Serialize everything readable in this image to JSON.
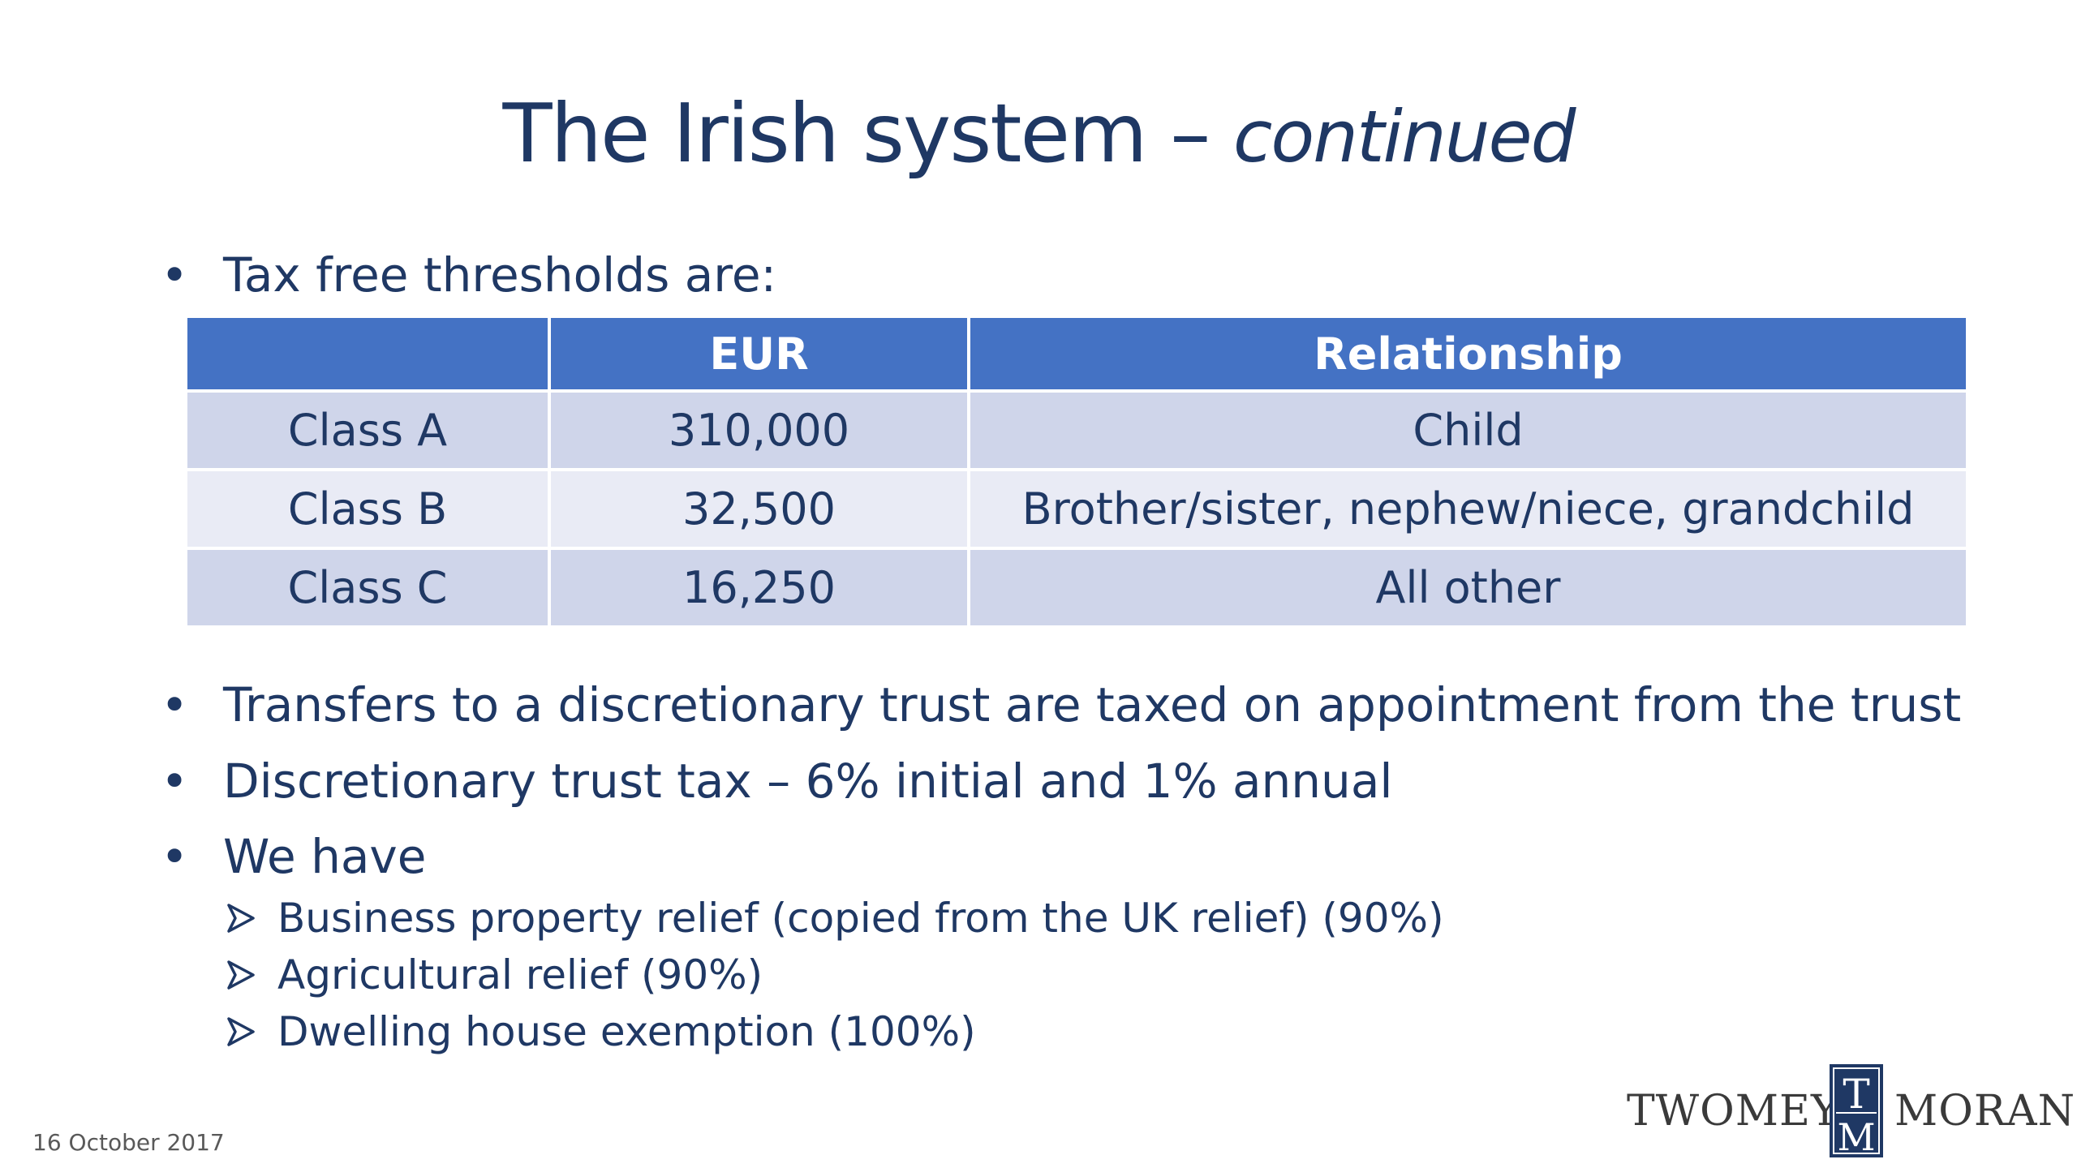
{
  "slide": {
    "title_main": "The Irish system – ",
    "title_italic": "continued"
  },
  "bullets": {
    "marker": "•",
    "items": [
      "Tax free thresholds are:",
      "Transfers to a discretionary trust are taxed on appointment from the trust",
      "Discretionary trust tax – 6% initial and 1% annual",
      "We have"
    ]
  },
  "sub_bullets": [
    "Business property relief (copied from the UK relief) (90%)",
    "Agricultural relief (90%)",
    "Dwelling house exemption (100%)"
  ],
  "table": {
    "headers": [
      "",
      "EUR",
      "Relationship"
    ],
    "rows": [
      [
        "Class A",
        "310,000",
        "Child"
      ],
      [
        "Class B",
        "32,500",
        "Brother/sister, nephew/niece, grandchild"
      ],
      [
        "Class C",
        "16,250",
        "All other"
      ]
    ]
  },
  "footer": {
    "date": "16 October 2017"
  },
  "logo": {
    "left_word": "TWOMEY",
    "right_word": "MORAN",
    "mark_top": "T",
    "mark_bottom": "M"
  },
  "colors": {
    "title": "#1f3864",
    "header_fill": "#4472c4",
    "row_dark": "#cfd5ea",
    "row_light": "#e9ebf5",
    "logo_mark": "#1f3864"
  }
}
